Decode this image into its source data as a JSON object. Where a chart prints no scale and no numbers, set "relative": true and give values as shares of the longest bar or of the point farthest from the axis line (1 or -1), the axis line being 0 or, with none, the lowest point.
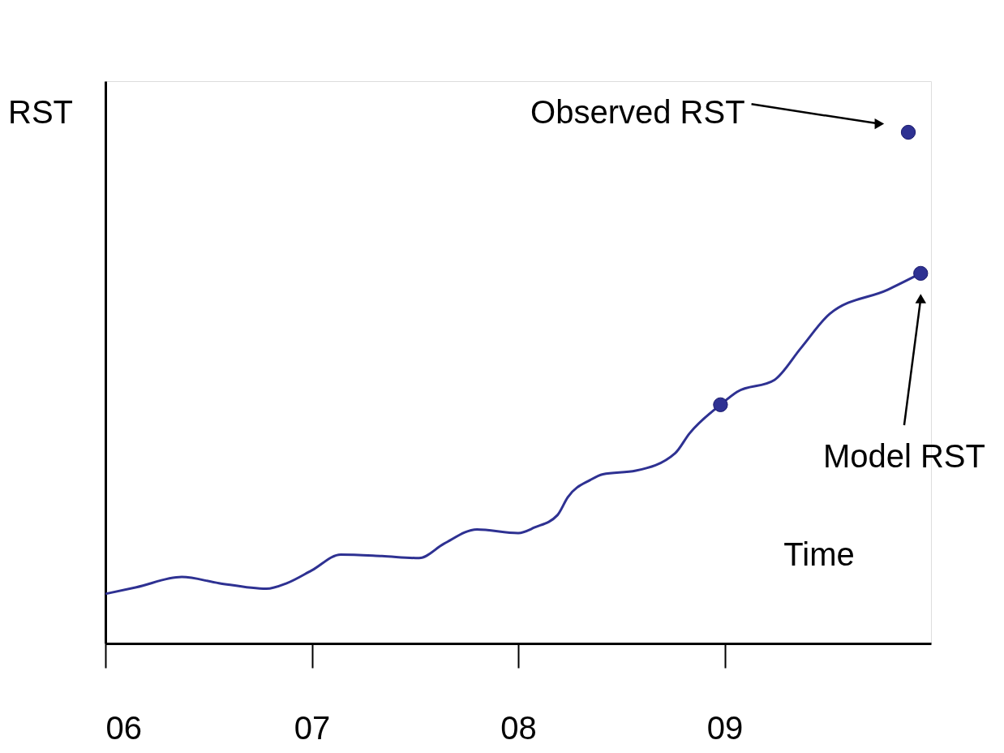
{
  "chart_data": {
    "type": "line",
    "relative": true,
    "xlabel": "Time",
    "ylabel": "RST",
    "xlim": [
      6,
      10
    ],
    "xticks": [
      {
        "value": 6,
        "label": "06"
      },
      {
        "value": 7,
        "label": "07"
      },
      {
        "value": 8,
        "label": "08"
      },
      {
        "value": 9,
        "label": "09"
      }
    ],
    "grid": false,
    "tick_labels": "x",
    "series": [
      {
        "color": "#2e3192",
        "marker": "none",
        "x": [
          6,
          6.15,
          6.37,
          6.55,
          6.78,
          6.88,
          7.0,
          7.14,
          7.34,
          7.52,
          7.64,
          7.8,
          8.0,
          8.08,
          8.19,
          8.24,
          8.35,
          8.41,
          8.57,
          8.76,
          8.83,
          8.98,
          9.06,
          9.24,
          9.37,
          9.51,
          9.79,
          9.95
        ],
        "values": [
          0.097,
          0.11,
          0.13,
          0.118,
          0.107,
          0.118,
          0.143,
          0.174,
          0.171,
          0.167,
          0.195,
          0.223,
          0.216,
          0.227,
          0.251,
          0.286,
          0.32,
          0.331,
          0.338,
          0.372,
          0.411,
          0.467,
          0.492,
          0.515,
          0.578,
          0.645,
          0.692,
          0.724
        ]
      },
      {
        "type": "scatter",
        "color": "#2e3192",
        "marker": "circle",
        "x": [
          8.98
        ],
        "values": [
          0.467
        ]
      },
      {
        "type": "scatter",
        "color": "#2e3192",
        "marker": "circle",
        "x": [
          9.95
        ],
        "values": [
          0.724
        ]
      },
      {
        "type": "scatter",
        "color": "#2e3192",
        "marker": "circle",
        "x": [
          9.89
        ],
        "values": [
          1.0
        ]
      }
    ],
    "annotations": [
      "Observed RST",
      "Model RST"
    ]
  }
}
